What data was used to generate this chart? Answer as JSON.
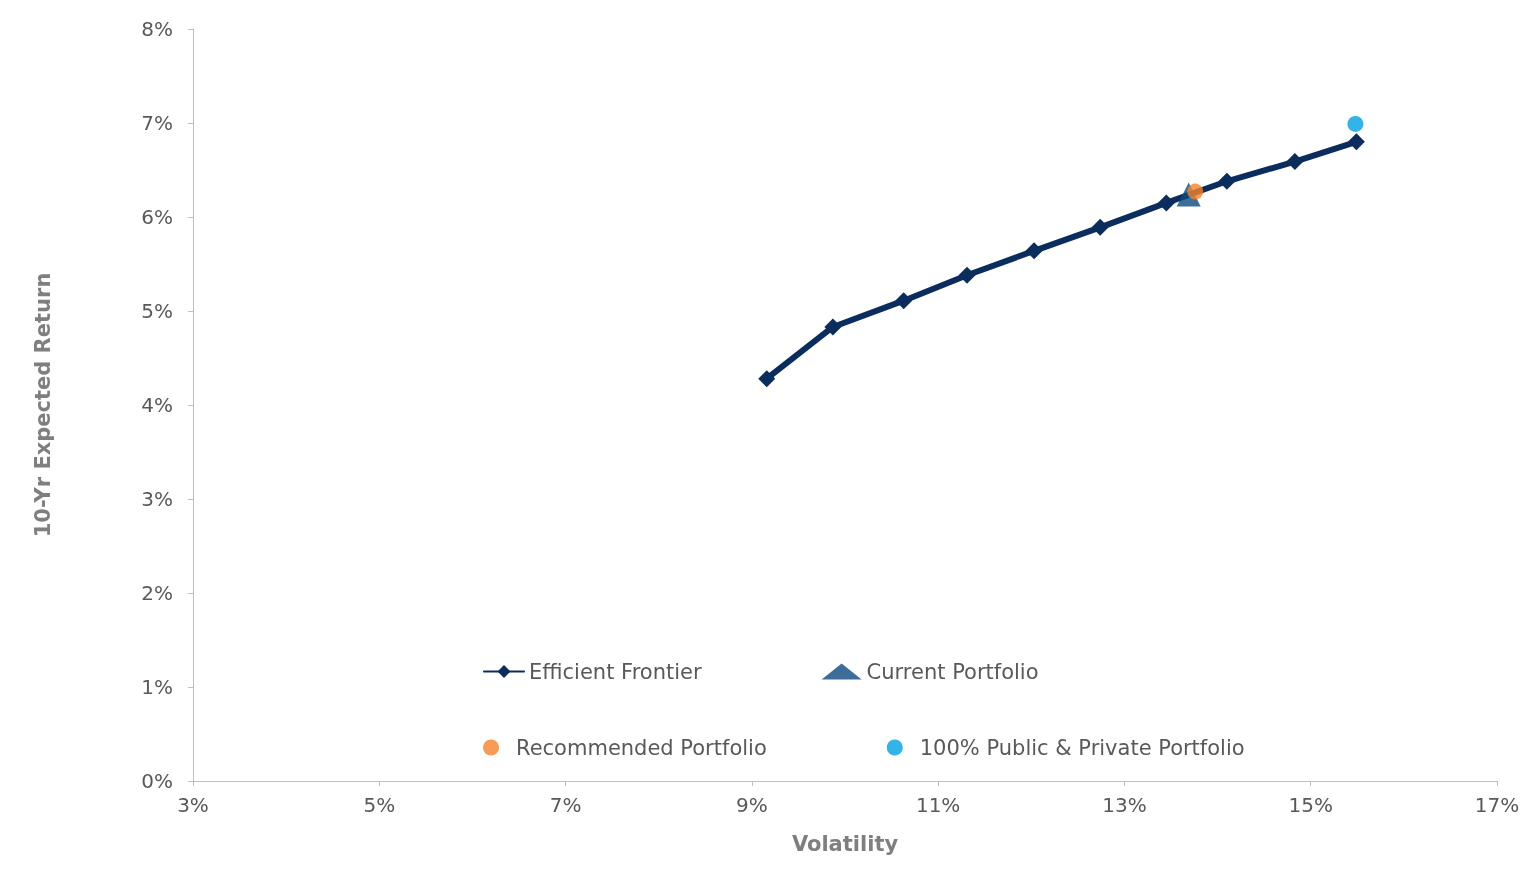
{
  "chart_data": {
    "type": "line",
    "xlabel": "Volatility",
    "ylabel": "10-Yr Expected Return",
    "xlim": [
      3,
      17
    ],
    "xticks": [
      {
        "value": 3,
        "label": "3%"
      },
      {
        "value": 5,
        "label": "5%"
      },
      {
        "value": 7,
        "label": "7%"
      },
      {
        "value": 9,
        "label": "9%"
      },
      {
        "value": 11,
        "label": "11%"
      },
      {
        "value": 13,
        "label": "13%"
      },
      {
        "value": 15,
        "label": "15%"
      },
      {
        "value": 17,
        "label": "17%"
      }
    ],
    "ylim": [
      0,
      8
    ],
    "yticks": [
      {
        "value": 0,
        "label": "0%"
      },
      {
        "value": 1,
        "label": "1%"
      },
      {
        "value": 2,
        "label": "2%"
      },
      {
        "value": 3,
        "label": "3%"
      },
      {
        "value": 4,
        "label": "4%"
      },
      {
        "value": 5,
        "label": "5%"
      },
      {
        "value": 6,
        "label": "6%"
      },
      {
        "value": 7,
        "label": "7%"
      },
      {
        "value": 8,
        "label": "8%"
      }
    ],
    "grid": false,
    "legend": "bottom",
    "line_style": "solid",
    "series": [
      {
        "name": "Efficient Frontier",
        "marker": "diamond",
        "color": "#0b2d5e",
        "x": [
          9.16,
          9.87,
          10.63,
          11.31,
          12.03,
          12.74,
          13.45,
          14.1,
          14.83,
          15.49
        ],
        "values": [
          4.28,
          4.83,
          5.11,
          5.38,
          5.64,
          5.89,
          6.15,
          6.38,
          6.59,
          6.8
        ]
      },
      {
        "name": "Current Portfolio",
        "type": "scatter",
        "marker": "triangle",
        "color": "#0b4a80",
        "x": [
          13.69
        ],
        "values": [
          6.24
        ]
      },
      {
        "name": "Recommended Portfolio",
        "type": "scatter",
        "marker": "circle",
        "color": "#f5822a",
        "x": [
          13.76
        ],
        "values": [
          6.27
        ]
      },
      {
        "name": "100% Public & Private Portfolio",
        "type": "scatter",
        "marker": "circle",
        "color": "#00a0e0",
        "x": [
          15.48
        ],
        "values": [
          6.99
        ]
      }
    ]
  }
}
